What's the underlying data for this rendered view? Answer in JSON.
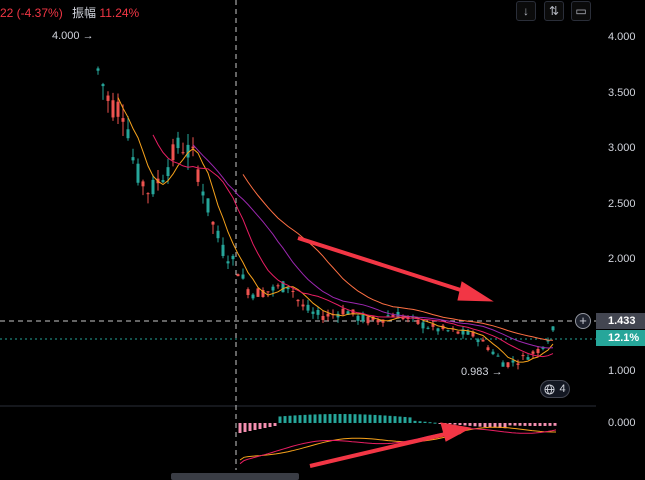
{
  "info_bar": {
    "change": "22 (-4.37%)",
    "amplitude_label": "振幅",
    "amplitude_value": "11.24%"
  },
  "toolbar": {
    "down_icon": "↓",
    "updown_icon": "⇅",
    "fullscreen_icon": "▭"
  },
  "price_axis": {
    "ticks": [
      "4.000",
      "3.500",
      "3.000",
      "2.500",
      "2.000",
      "1.000"
    ],
    "indicator_tick": "0.000",
    "current_price": "1.433",
    "percent_change": "12.1%"
  },
  "annotations": {
    "high": "4.000 →",
    "low": "0.983 →"
  },
  "badge": {
    "count": "4"
  },
  "colors": {
    "up": "#26a69a",
    "down": "#ef5350",
    "arrow": "#f23645",
    "macd_line": "#f7a21b",
    "signal_line": "#e91e63"
  }
}
